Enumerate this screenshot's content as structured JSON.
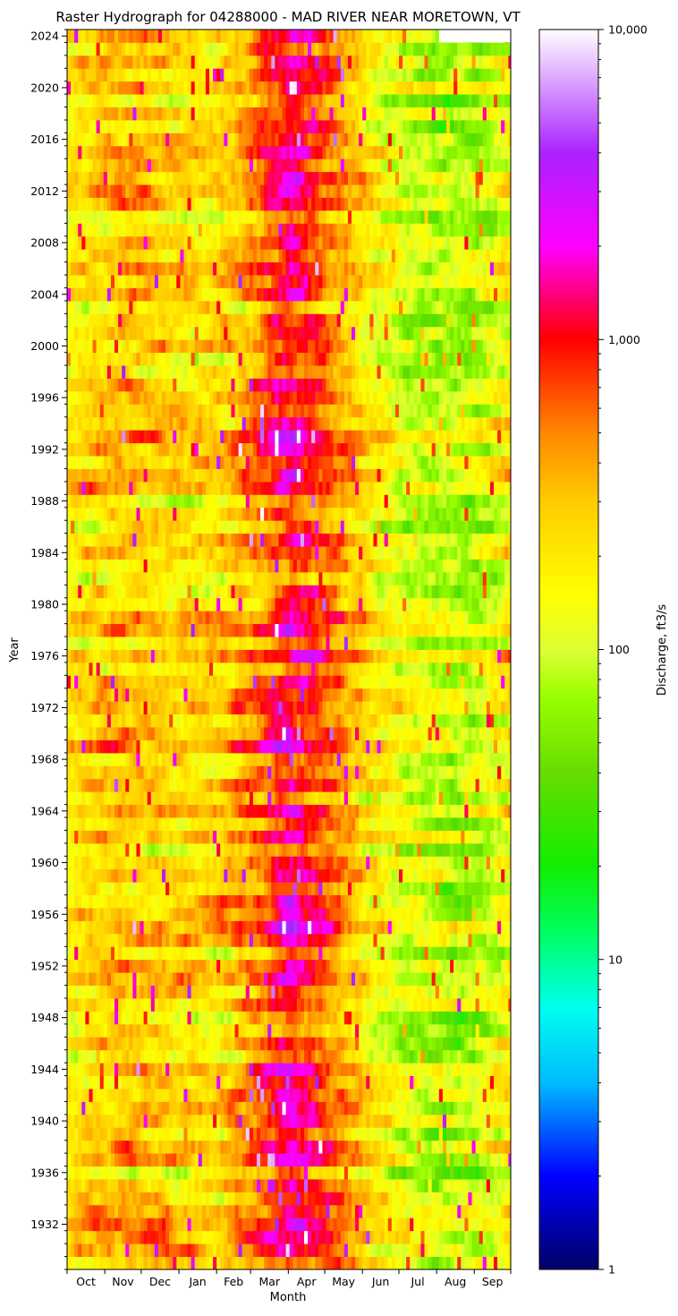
{
  "chart_data": {
    "type": "heatmap",
    "title": "Raster Hydrograph for 04288000 - MAD RIVER NEAR MORETOWN, VT",
    "xlabel": "Month",
    "ylabel": "Year",
    "colorbar_label": "Discharge, ft3/s",
    "colorbar_scale": "log",
    "colorbar_range": [
      1,
      10000
    ],
    "colorbar_ticks": [
      {
        "value": 1,
        "label": "1"
      },
      {
        "value": 10,
        "label": "10"
      },
      {
        "value": 100,
        "label": "100"
      },
      {
        "value": 1000,
        "label": "1,000"
      },
      {
        "value": 10000,
        "label": "10,000"
      }
    ],
    "colormap_stops": [
      {
        "value": 1,
        "color": "#000066"
      },
      {
        "value": 2,
        "color": "#0000ff"
      },
      {
        "value": 4,
        "color": "#00bbff"
      },
      {
        "value": 7,
        "color": "#00ffee"
      },
      {
        "value": 12,
        "color": "#00ff66"
      },
      {
        "value": 20,
        "color": "#11ee00"
      },
      {
        "value": 40,
        "color": "#66dd00"
      },
      {
        "value": 70,
        "color": "#99ff00"
      },
      {
        "value": 100,
        "color": "#ddff33"
      },
      {
        "value": 150,
        "color": "#ffff00"
      },
      {
        "value": 300,
        "color": "#ffcc00"
      },
      {
        "value": 500,
        "color": "#ff8800"
      },
      {
        "value": 1000,
        "color": "#ff0000"
      },
      {
        "value": 2000,
        "color": "#ff00ff"
      },
      {
        "value": 4000,
        "color": "#aa22ff"
      },
      {
        "value": 10000,
        "color": "#ffffff"
      }
    ],
    "year_range": [
      1929,
      2024
    ],
    "year_tick_labels": [
      "1932",
      "1936",
      "1940",
      "1944",
      "1948",
      "1952",
      "1956",
      "1960",
      "1964",
      "1968",
      "1972",
      "1976",
      "1980",
      "1984",
      "1988",
      "1992",
      "1996",
      "2000",
      "2004",
      "2008",
      "2012",
      "2016",
      "2020",
      "2024"
    ],
    "month_labels": [
      "Oct",
      "Nov",
      "Dec",
      "Jan",
      "Feb",
      "Mar",
      "Apr",
      "May",
      "Jun",
      "Jul",
      "Aug",
      "Sep"
    ],
    "monthly_typical_discharge": {
      "months": [
        "Oct",
        "Nov",
        "Dec",
        "Jan",
        "Feb",
        "Mar",
        "Apr",
        "May",
        "Jun",
        "Jul",
        "Aug",
        "Sep"
      ],
      "values": [
        180,
        260,
        260,
        230,
        210,
        450,
        1200,
        550,
        220,
        110,
        80,
        80
      ]
    },
    "missing_data_end": "2024-08"
  }
}
